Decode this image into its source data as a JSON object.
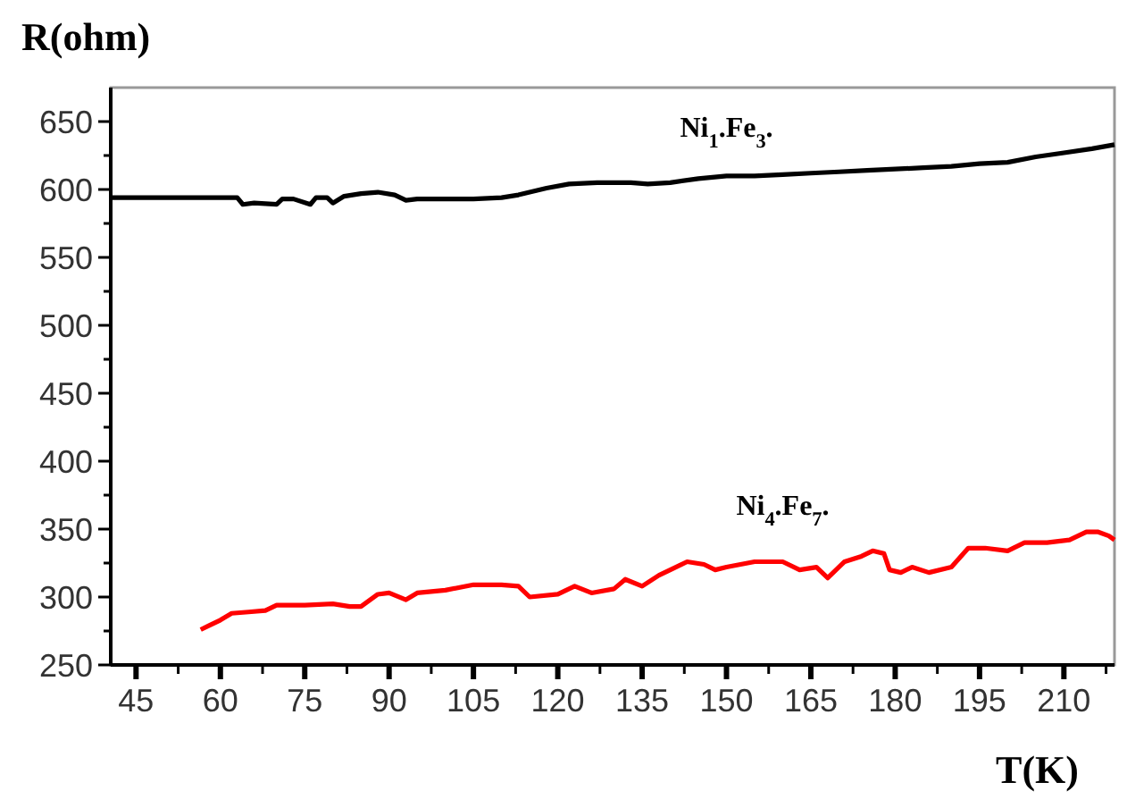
{
  "chart_data": {
    "type": "line",
    "xlabel": "T(K)",
    "ylabel": "R(ohm)",
    "xlim": [
      40.5,
      219
    ],
    "ylim": [
      250,
      675
    ],
    "xticks": [
      45,
      {
        "value": 52.5,
        "label": null
      },
      60,
      {
        "value": 67.5,
        "label": null
      },
      75,
      {
        "value": 82.5,
        "label": null
      },
      90,
      {
        "value": 97.5,
        "label": null
      },
      105,
      {
        "value": 112.5,
        "label": null
      },
      120,
      {
        "value": 127.5,
        "label": null
      },
      135,
      {
        "value": 142.5,
        "label": null
      },
      150,
      {
        "value": 157.5,
        "label": null
      },
      165,
      {
        "value": 172.5,
        "label": null
      },
      180,
      {
        "value": 187.5,
        "label": null
      },
      195,
      {
        "value": 202.5,
        "label": null
      },
      210,
      {
        "value": 217.5,
        "label": null
      }
    ],
    "yticks": [
      250,
      {
        "value": 275,
        "label": null
      },
      300,
      {
        "value": 325,
        "label": null
      },
      350,
      {
        "value": 375,
        "label": null
      },
      400,
      {
        "value": 425,
        "label": null
      },
      450,
      {
        "value": 475,
        "label": null
      },
      500,
      {
        "value": 525,
        "label": null
      },
      550,
      {
        "value": 575,
        "label": null
      },
      600,
      {
        "value": 625,
        "label": null
      },
      650
    ],
    "grid": false,
    "legend": false,
    "marker": "none",
    "line_style": "solid",
    "series": [
      {
        "name": "Ni$_{1}$.Fe$_{3}$.",
        "color": "#000000",
        "x": [
          40.5,
          50,
          60,
          63,
          64,
          66,
          70,
          71,
          73,
          76,
          77,
          79,
          80,
          82,
          85,
          88,
          91,
          93,
          95,
          100,
          105,
          110,
          113,
          118,
          122,
          127,
          133,
          136,
          140,
          145,
          150,
          155,
          160,
          165,
          170,
          175,
          180,
          185,
          190,
          195,
          200,
          205,
          210,
          215,
          219
        ],
        "values": [
          594,
          594,
          594,
          594,
          589,
          590,
          589,
          593,
          593,
          589,
          594,
          594,
          590,
          595,
          597,
          598,
          596,
          592,
          593,
          593,
          593,
          594,
          596,
          601,
          604,
          605,
          605,
          604,
          605,
          608,
          610,
          610,
          611,
          612,
          613,
          614,
          615,
          616,
          617,
          619,
          620,
          624,
          627,
          630,
          633
        ]
      },
      {
        "name": "Ni$_{4}$.Fe$_{7}$.",
        "color": "#ff0000",
        "x": [
          56.5,
          58,
          60,
          62,
          65,
          68,
          70,
          75,
          80,
          83,
          85,
          88,
          90,
          93,
          95,
          100,
          105,
          110,
          113,
          115,
          120,
          123,
          126,
          130,
          132,
          135,
          138,
          140,
          143,
          146,
          148,
          150,
          155,
          160,
          163,
          166,
          168,
          171,
          174,
          176,
          178,
          179,
          181,
          183,
          186,
          190,
          193,
          196,
          200,
          203,
          207,
          211,
          214,
          216,
          218,
          219
        ],
        "values": [
          276,
          279,
          283,
          288,
          289,
          290,
          294,
          294,
          295,
          293,
          293,
          302,
          303,
          298,
          303,
          305,
          309,
          309,
          308,
          300,
          302,
          308,
          303,
          306,
          313,
          308,
          316,
          320,
          326,
          324,
          320,
          322,
          326,
          326,
          320,
          322,
          314,
          326,
          330,
          334,
          332,
          320,
          318,
          322,
          318,
          322,
          336,
          336,
          334,
          340,
          340,
          342,
          348,
          348,
          345,
          342
        ]
      }
    ]
  }
}
